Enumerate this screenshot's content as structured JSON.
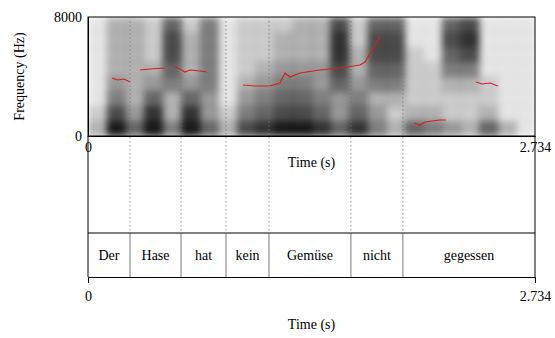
{
  "chart_data": {
    "type": "spectrogram",
    "xlabel": "Time (s)",
    "ylabel": "Frequency (Hz)",
    "xlim": [
      0,
      2.734
    ],
    "ylim": [
      0,
      8000
    ],
    "xticks": [
      0,
      2.734
    ],
    "yticks": [
      0,
      8000
    ],
    "spectrogram": {
      "time_edges": [
        0,
        0.114,
        0.228,
        0.342,
        0.456,
        0.57,
        0.684,
        0.797,
        0.911,
        1.025,
        1.139,
        1.253,
        1.367,
        1.481,
        1.595,
        1.709,
        1.823,
        1.937,
        2.05,
        2.164,
        2.278,
        2.392,
        2.506,
        2.62,
        2.734
      ],
      "frequency_edges": [
        0,
        1000,
        2000,
        3000,
        4000,
        5000,
        6000,
        7000,
        8000
      ],
      "darkness": [
        [
          0.3,
          0.2,
          0.1,
          0.1,
          0.1,
          0.1,
          0.1,
          0.1
        ],
        [
          0.9,
          0.7,
          0.5,
          0.4,
          0.3,
          0.3,
          0.3,
          0.3
        ],
        [
          0.6,
          0.4,
          0.3,
          0.3,
          0.3,
          0.3,
          0.3,
          0.3
        ],
        [
          0.9,
          0.8,
          0.6,
          0.4,
          0.3,
          0.2,
          0.2,
          0.2
        ],
        [
          0.5,
          0.3,
          0.3,
          0.5,
          0.6,
          0.7,
          0.7,
          0.6
        ],
        [
          0.9,
          0.8,
          0.6,
          0.4,
          0.3,
          0.3,
          0.3,
          0.2
        ],
        [
          0.6,
          0.4,
          0.4,
          0.5,
          0.5,
          0.5,
          0.5,
          0.5
        ],
        [
          0.3,
          0.2,
          0.1,
          0.1,
          0.1,
          0.1,
          0.1,
          0.1
        ],
        [
          0.7,
          0.5,
          0.4,
          0.3,
          0.2,
          0.2,
          0.2,
          0.2
        ],
        [
          0.8,
          0.6,
          0.5,
          0.4,
          0.3,
          0.2,
          0.2,
          0.2
        ],
        [
          0.9,
          0.7,
          0.6,
          0.5,
          0.4,
          0.3,
          0.3,
          0.2
        ],
        [
          0.9,
          0.7,
          0.6,
          0.5,
          0.4,
          0.3,
          0.3,
          0.3
        ],
        [
          0.8,
          0.6,
          0.5,
          0.4,
          0.4,
          0.3,
          0.3,
          0.3
        ],
        [
          0.6,
          0.4,
          0.4,
          0.6,
          0.7,
          0.8,
          0.8,
          0.7
        ],
        [
          0.8,
          0.6,
          0.5,
          0.4,
          0.3,
          0.3,
          0.2,
          0.2
        ],
        [
          0.5,
          0.4,
          0.3,
          0.5,
          0.6,
          0.7,
          0.7,
          0.6
        ],
        [
          0.3,
          0.2,
          0.3,
          0.5,
          0.6,
          0.7,
          0.7,
          0.6
        ],
        [
          0.6,
          0.3,
          0.2,
          0.2,
          0.2,
          0.2,
          0.1,
          0.1
        ],
        [
          0.5,
          0.3,
          0.2,
          0.2,
          0.2,
          0.1,
          0.1,
          0.1
        ],
        [
          0.4,
          0.2,
          0.2,
          0.3,
          0.5,
          0.6,
          0.7,
          0.6
        ],
        [
          0.3,
          0.2,
          0.2,
          0.3,
          0.5,
          0.7,
          0.8,
          0.7
        ],
        [
          0.6,
          0.3,
          0.2,
          0.2,
          0.1,
          0.1,
          0.1,
          0.1
        ],
        [
          0.3,
          0.1,
          0.1,
          0.1,
          0.1,
          0.1,
          0.1,
          0.1
        ],
        [
          0.1,
          0.1,
          0.1,
          0.1,
          0.1,
          0.1,
          0.1,
          0.1
        ]
      ]
    },
    "series": [
      {
        "type": "line",
        "color": "#d81e1e",
        "x": [
          0.147,
          0.183,
          0.22,
          0.257,
          null,
          0.318,
          0.379,
          0.471,
          null,
          0.532,
          0.563,
          0.593,
          0.624,
          0.685,
          0.728,
          null,
          0.948,
          1.021,
          1.113,
          1.174,
          1.205,
          1.235,
          1.297,
          1.419,
          1.541,
          1.664,
          1.694,
          1.737,
          1.786,
          null,
          1.994,
          2.031,
          2.061,
          2.104,
          2.153,
          2.19,
          null,
          2.373,
          2.41,
          2.459,
          2.508
        ],
        "values": [
          3899,
          3765,
          3832,
          3630,
          null,
          4437,
          4504,
          4572,
          null,
          4639,
          4504,
          4303,
          4437,
          4370,
          4303,
          null,
          3429,
          3362,
          3362,
          3563,
          4235,
          3967,
          4235,
          4437,
          4572,
          4773,
          4975,
          5782,
          6656,
          null,
          874,
          740,
          941,
          1008,
          1076,
          1076,
          null,
          3630,
          3496,
          3563,
          3362
        ]
      }
    ],
    "tier": [
      {
        "label": "Der",
        "start": 0,
        "end": 0.257
      },
      {
        "label": "Hase",
        "start": 0.257,
        "end": 0.569
      },
      {
        "label": "hat",
        "start": 0.569,
        "end": 0.844
      },
      {
        "label": "kein",
        "start": 0.844,
        "end": 1.107
      },
      {
        "label": "Gemüse",
        "start": 1.107,
        "end": 1.608
      },
      {
        "label": "nicht",
        "start": 1.608,
        "end": 1.926
      },
      {
        "label": "gegessen",
        "start": 1.926,
        "end": 2.734
      }
    ]
  }
}
